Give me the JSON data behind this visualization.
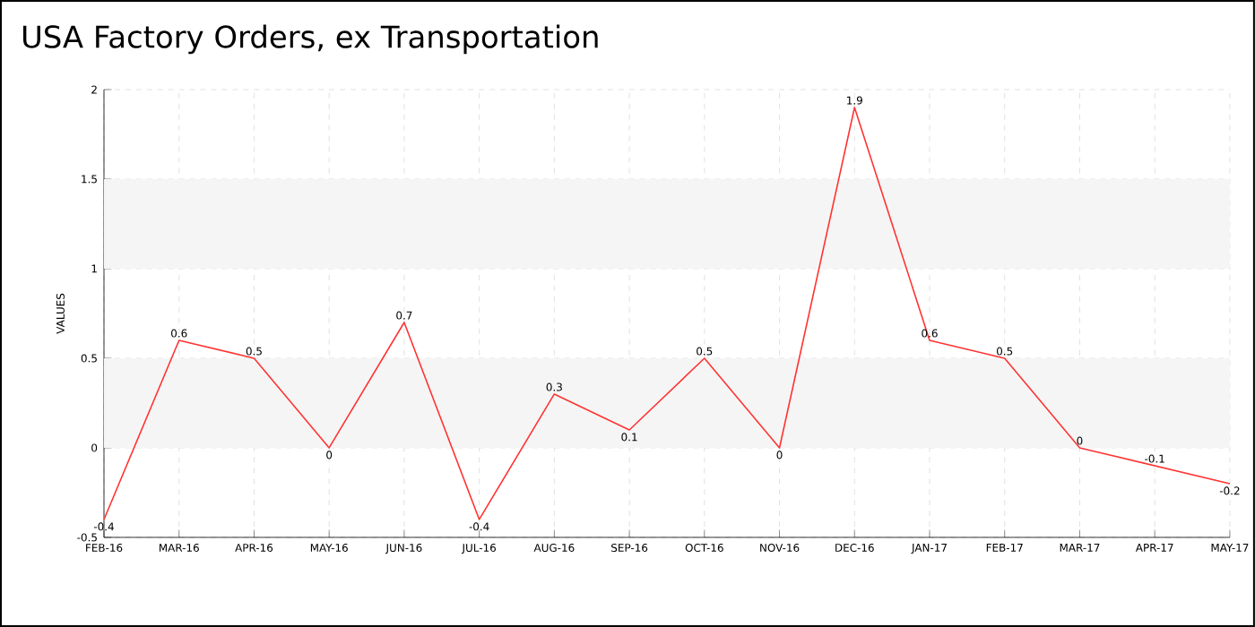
{
  "chart_data": {
    "type": "line",
    "title": "USA Factory Orders, ex Transportation",
    "ylabel": "VALUES",
    "categories": [
      "FEB-16",
      "MAR-16",
      "APR-16",
      "MAY-16",
      "JUN-16",
      "JUL-16",
      "AUG-16",
      "SEP-16",
      "OCT-16",
      "NOV-16",
      "DEC-16",
      "JAN-17",
      "FEB-17",
      "MAR-17",
      "APR-17",
      "MAY-17"
    ],
    "series": [
      {
        "color": "#ff3333",
        "values": [
          -0.4,
          0.6,
          0.5,
          0,
          0.7,
          -0.4,
          0.3,
          0.1,
          0.5,
          0,
          1.9,
          0.6,
          0.5,
          0,
          -0.1,
          -0.2
        ]
      }
    ],
    "ylim": [
      -0.5,
      2
    ],
    "yticks": [
      -0.5,
      0,
      0.5,
      1,
      1.5,
      2
    ],
    "bands": [
      {
        "axis": "y",
        "from": 0,
        "to": 0.5,
        "color": "#f5f5f5"
      },
      {
        "axis": "y",
        "from": 1,
        "to": 1.5,
        "color": "#f5f5f5"
      }
    ],
    "grid": true,
    "data_labels": true,
    "marker": "none",
    "line_style": "solid"
  }
}
